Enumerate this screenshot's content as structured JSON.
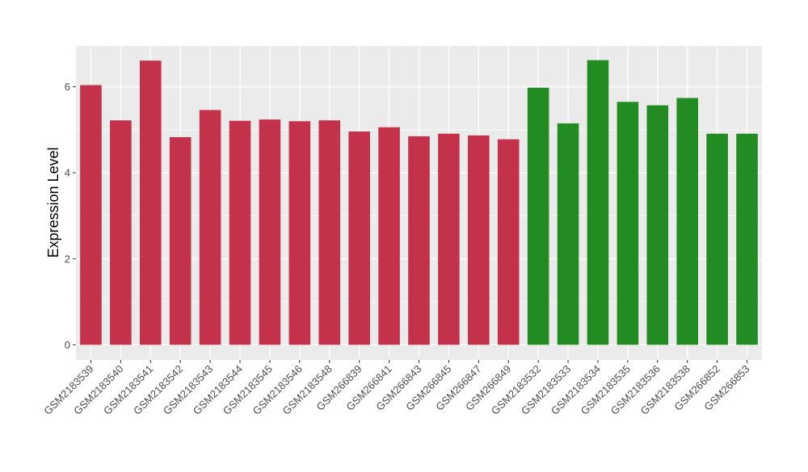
{
  "chart_data": {
    "type": "bar",
    "title": "",
    "xlabel": "",
    "ylabel": "Expression Level",
    "ylim": [
      -0.35,
      6.95
    ],
    "yticks": [
      0,
      2,
      4,
      6
    ],
    "grid": true,
    "legend": "none",
    "categories": [
      "GSM2183539",
      "GSM2183540",
      "GSM2183541",
      "GSM2183542",
      "GSM2183543",
      "GSM2183544",
      "GSM2183545",
      "GSM2183546",
      "GSM2183548",
      "GSM266839",
      "GSM266841",
      "GSM266843",
      "GSM266845",
      "GSM266847",
      "GSM266849",
      "GSM2183532",
      "GSM2183533",
      "GSM2183534",
      "GSM2183535",
      "GSM2183536",
      "GSM2183538",
      "GSM266852",
      "GSM266853"
    ],
    "values": [
      6.04,
      5.22,
      6.61,
      4.83,
      5.46,
      5.21,
      5.24,
      5.2,
      5.22,
      4.96,
      5.06,
      4.85,
      4.91,
      4.87,
      4.78,
      5.98,
      5.15,
      6.62,
      5.65,
      5.57,
      5.74,
      4.91,
      4.91
    ],
    "bar_colors": [
      "#C4314B",
      "#C4314B",
      "#C4314B",
      "#C4314B",
      "#C4314B",
      "#C4314B",
      "#C4314B",
      "#C4314B",
      "#C4314B",
      "#C4314B",
      "#C4314B",
      "#C4314B",
      "#C4314B",
      "#C4314B",
      "#C4314B",
      "#228B22",
      "#228B22",
      "#228B22",
      "#228B22",
      "#228B22",
      "#228B22",
      "#228B22",
      "#228B22"
    ],
    "panel_background": "#EBEBEB",
    "grid_color": "#FFFFFF"
  }
}
